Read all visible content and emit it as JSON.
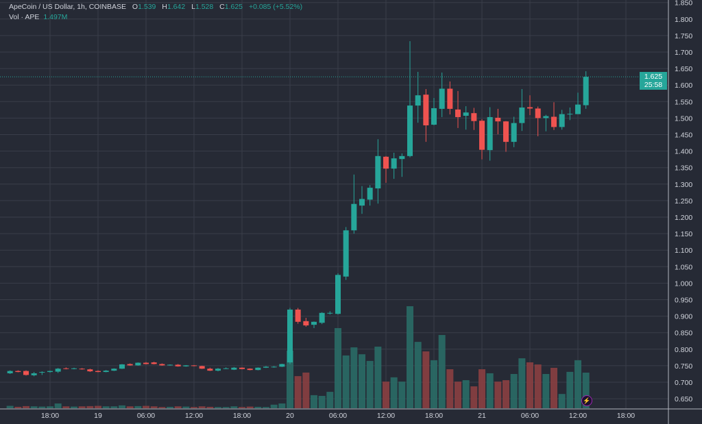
{
  "header": {
    "symbol": "ApeCoin / US Dollar, 1h, COINBASE",
    "open_label": "O",
    "open": "1.539",
    "high_label": "H",
    "high": "1.642",
    "low_label": "L",
    "low": "1.528",
    "close_label": "C",
    "close": "1.625",
    "change": "+0.085 (+5.52%)",
    "volume_label": "Vol · APE",
    "volume": "1.497M"
  },
  "price_tag": {
    "price": "1.625",
    "countdown": "25:58"
  },
  "colors": {
    "background": "#262a35",
    "grid": "#3a3e4a",
    "up": "#26a69a",
    "down": "#ef5350",
    "vol_up": "#2a6b66",
    "vol_down": "#8b3f41",
    "lightning": "#9c27b0"
  },
  "icons": {
    "lightning": "lightning-icon"
  },
  "chart_data": {
    "type": "candlestick",
    "interval": "1h",
    "ylim": [
      0.63,
      1.86
    ],
    "grid": true,
    "price_ticks": [
      "1.850",
      "1.800",
      "1.750",
      "1.700",
      "1.650",
      "1.600",
      "1.550",
      "1.500",
      "1.450",
      "1.400",
      "1.350",
      "1.300",
      "1.250",
      "1.200",
      "1.150",
      "1.100",
      "1.050",
      "1.000",
      "0.950",
      "0.900",
      "0.850",
      "0.800",
      "0.750",
      "0.700",
      "0.650"
    ],
    "time_ticks": [
      {
        "t": "18 18:00",
        "label": "18:00"
      },
      {
        "t": "19 00:00",
        "label": "19"
      },
      {
        "t": "19 06:00",
        "label": "06:00"
      },
      {
        "t": "19 12:00",
        "label": "12:00"
      },
      {
        "t": "19 18:00",
        "label": "18:00"
      },
      {
        "t": "20 00:00",
        "label": "20"
      },
      {
        "t": "20 06:00",
        "label": "06:00"
      },
      {
        "t": "20 12:00",
        "label": "12:00"
      },
      {
        "t": "20 18:00",
        "label": "18:00"
      },
      {
        "t": "21 00:00",
        "label": "21"
      },
      {
        "t": "21 06:00",
        "label": "06:00"
      },
      {
        "t": "21 12:00",
        "label": "12:00"
      },
      {
        "t": "21 18:00",
        "label": "18:00"
      }
    ],
    "candle_fields": [
      "time",
      "open",
      "high",
      "low",
      "close",
      "volume_M"
    ],
    "candles": [
      [
        "18 13:00",
        0.727,
        0.736,
        0.725,
        0.734,
        0.1
      ],
      [
        "18 14:00",
        0.734,
        0.736,
        0.73,
        0.731,
        0.06
      ],
      [
        "18 15:00",
        0.734,
        0.736,
        0.72,
        0.722,
        0.09
      ],
      [
        "18 16:00",
        0.721,
        0.731,
        0.718,
        0.727,
        0.08
      ],
      [
        "18 17:00",
        0.73,
        0.733,
        0.722,
        0.731,
        0.07
      ],
      [
        "18 18:00",
        0.731,
        0.735,
        0.729,
        0.734,
        0.08
      ],
      [
        "18 19:00",
        0.732,
        0.743,
        0.728,
        0.741,
        0.2
      ],
      [
        "18 20:00",
        0.742,
        0.745,
        0.739,
        0.74,
        0.08
      ],
      [
        "18 21:00",
        0.74,
        0.744,
        0.739,
        0.742,
        0.07
      ],
      [
        "18 22:00",
        0.741,
        0.743,
        0.738,
        0.739,
        0.08
      ],
      [
        "18 23:00",
        0.739,
        0.741,
        0.731,
        0.733,
        0.09
      ],
      [
        "19 00:00",
        0.734,
        0.736,
        0.73,
        0.731,
        0.1
      ],
      [
        "19 01:00",
        0.731,
        0.737,
        0.73,
        0.735,
        0.08
      ],
      [
        "19 02:00",
        0.735,
        0.742,
        0.734,
        0.741,
        0.08
      ],
      [
        "19 03:00",
        0.741,
        0.755,
        0.74,
        0.754,
        0.12
      ],
      [
        "19 04:00",
        0.755,
        0.757,
        0.75,
        0.751,
        0.08
      ],
      [
        "19 05:00",
        0.751,
        0.76,
        0.75,
        0.759,
        0.09
      ],
      [
        "19 06:00",
        0.759,
        0.761,
        0.754,
        0.755,
        0.1
      ],
      [
        "19 07:00",
        0.76,
        0.762,
        0.754,
        0.755,
        0.08
      ],
      [
        "19 08:00",
        0.755,
        0.757,
        0.75,
        0.751,
        0.05
      ],
      [
        "19 09:00",
        0.751,
        0.754,
        0.75,
        0.753,
        0.06
      ],
      [
        "19 10:00",
        0.753,
        0.755,
        0.747,
        0.748,
        0.08
      ],
      [
        "19 11:00",
        0.748,
        0.752,
        0.747,
        0.751,
        0.07
      ],
      [
        "19 12:00",
        0.751,
        0.752,
        0.748,
        0.749,
        0.05
      ],
      [
        "19 13:00",
        0.749,
        0.75,
        0.74,
        0.741,
        0.08
      ],
      [
        "19 14:00",
        0.741,
        0.744,
        0.734,
        0.735,
        0.06
      ],
      [
        "19 15:00",
        0.735,
        0.743,
        0.733,
        0.741,
        0.05
      ],
      [
        "19 16:00",
        0.741,
        0.745,
        0.74,
        0.742,
        0.05
      ],
      [
        "19 17:00",
        0.738,
        0.746,
        0.737,
        0.744,
        0.08
      ],
      [
        "19 18:00",
        0.744,
        0.745,
        0.739,
        0.74,
        0.05
      ],
      [
        "19 19:00",
        0.741,
        0.742,
        0.736,
        0.737,
        0.07
      ],
      [
        "19 20:00",
        0.737,
        0.745,
        0.736,
        0.744,
        0.06
      ],
      [
        "19 21:00",
        0.744,
        0.749,
        0.743,
        0.747,
        0.05
      ],
      [
        "19 22:00",
        0.745,
        0.749,
        0.744,
        0.747,
        0.15
      ],
      [
        "19 23:00",
        0.747,
        0.756,
        0.746,
        0.755,
        0.2
      ],
      [
        "20 00:00",
        0.76,
        0.925,
        0.755,
        0.92,
        2.42
      ],
      [
        "20 01:00",
        0.92,
        0.925,
        0.877,
        0.883,
        1.35
      ],
      [
        "20 02:00",
        0.885,
        0.895,
        0.868,
        0.872,
        1.5
      ],
      [
        "20 03:00",
        0.874,
        0.884,
        0.864,
        0.883,
        0.55
      ],
      [
        "20 04:00",
        0.88,
        0.912,
        0.876,
        0.91,
        0.52
      ],
      [
        "20 05:00",
        0.909,
        0.915,
        0.905,
        0.91,
        0.69
      ],
      [
        "20 06:00",
        0.907,
        1.03,
        0.905,
        1.025,
        3.37
      ],
      [
        "20 07:00",
        1.02,
        1.17,
        1.01,
        1.16,
        2.22
      ],
      [
        "20 08:00",
        1.16,
        1.329,
        1.15,
        1.24,
        2.56
      ],
      [
        "20 09:00",
        1.235,
        1.294,
        1.21,
        1.255,
        2.27
      ],
      [
        "20 10:00",
        1.253,
        1.297,
        1.235,
        1.289,
        1.99
      ],
      [
        "20 11:00",
        1.287,
        1.436,
        1.241,
        1.385,
        2.59
      ],
      [
        "20 12:00",
        1.383,
        1.385,
        1.304,
        1.347,
        1.12
      ],
      [
        "20 13:00",
        1.347,
        1.395,
        1.316,
        1.378,
        1.3
      ],
      [
        "20 14:00",
        1.376,
        1.393,
        1.322,
        1.385,
        1.12
      ],
      [
        "20 15:00",
        1.385,
        1.733,
        1.381,
        1.538,
        4.29
      ],
      [
        "20 16:00",
        1.538,
        1.64,
        1.486,
        1.569,
        2.79
      ],
      [
        "20 17:00",
        1.571,
        1.588,
        1.428,
        1.478,
        2.39
      ],
      [
        "20 18:00",
        1.48,
        1.561,
        1.478,
        1.53,
        2.02
      ],
      [
        "20 19:00",
        1.528,
        1.638,
        1.503,
        1.589,
        3.08
      ],
      [
        "20 20:00",
        1.589,
        1.611,
        1.511,
        1.528,
        1.64
      ],
      [
        "20 21:00",
        1.526,
        1.582,
        1.47,
        1.503,
        1.12
      ],
      [
        "20 22:00",
        1.507,
        1.536,
        1.465,
        1.517,
        1.18
      ],
      [
        "20 23:00",
        1.515,
        1.531,
        1.464,
        1.491,
        0.92
      ],
      [
        "21 00:00",
        1.492,
        1.497,
        1.375,
        1.404,
        1.64
      ],
      [
        "21 01:00",
        1.403,
        1.533,
        1.371,
        1.503,
        1.47
      ],
      [
        "21 02:00",
        1.501,
        1.528,
        1.451,
        1.49,
        1.12
      ],
      [
        "21 03:00",
        1.49,
        1.491,
        1.398,
        1.428,
        1.18
      ],
      [
        "21 04:00",
        1.428,
        1.504,
        1.412,
        1.485,
        1.44
      ],
      [
        "21 05:00",
        1.485,
        1.588,
        1.461,
        1.532,
        2.1
      ],
      [
        "21 06:00",
        1.533,
        1.569,
        1.509,
        1.529,
        1.93
      ],
      [
        "21 07:00",
        1.529,
        1.535,
        1.445,
        1.5,
        1.84
      ],
      [
        "21 08:00",
        1.5,
        1.51,
        1.46,
        1.506,
        1.44
      ],
      [
        "21 09:00",
        1.504,
        1.548,
        1.464,
        1.473,
        1.7
      ],
      [
        "21 10:00",
        1.473,
        1.525,
        1.465,
        1.512,
        0.6
      ],
      [
        "21 11:00",
        1.511,
        1.532,
        1.494,
        1.513,
        1.53
      ],
      [
        "21 12:00",
        1.512,
        1.577,
        1.512,
        1.541,
        2.02
      ],
      [
        "21 13:00",
        1.539,
        1.642,
        1.528,
        1.625,
        1.497
      ]
    ]
  }
}
